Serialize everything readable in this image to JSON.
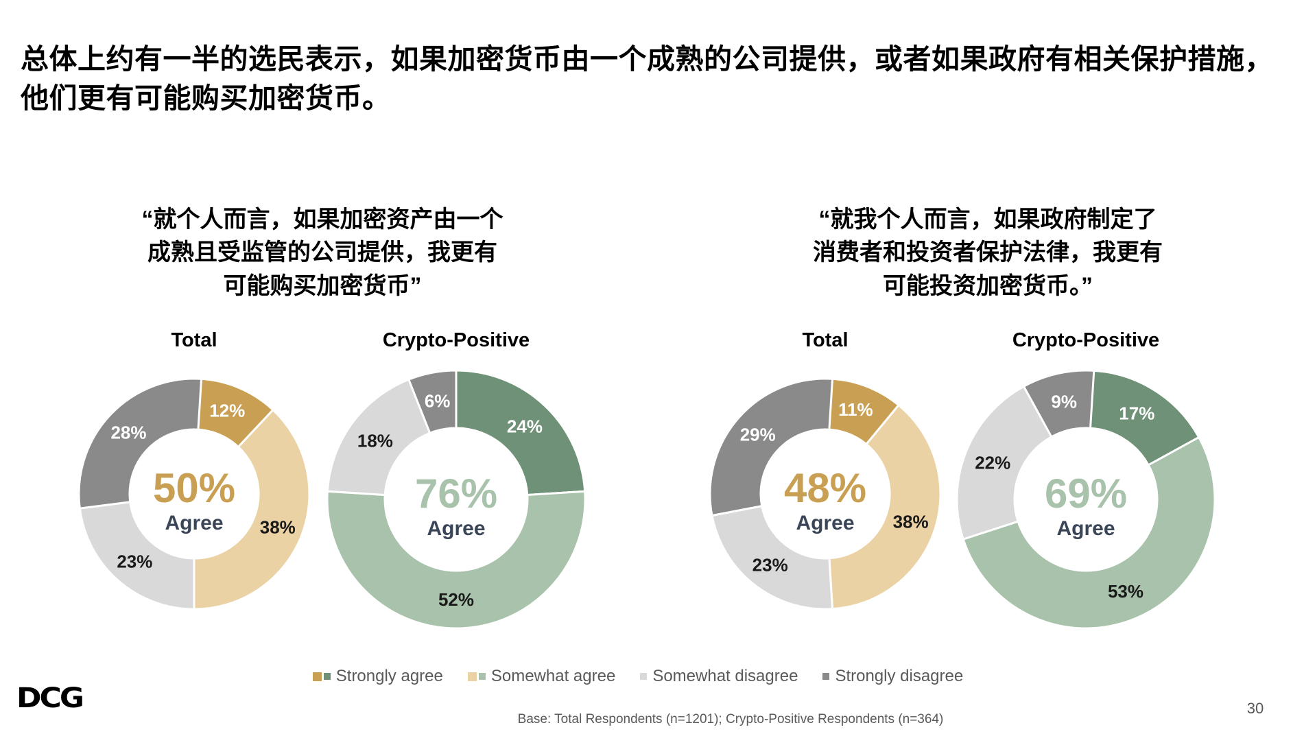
{
  "page": {
    "title": "总体上约有一半的选民表示，如果加密货币由一个成熟的公司提供，或者如果政府有相关保护措施，\n他们更有可能购买加密货币。",
    "logo_text": "DCG",
    "page_number": "30",
    "base_note": "Base: Total Respondents (n=1201); Crypto-Positive Respondents (n=364)"
  },
  "quotes": {
    "left": "“就个人而言，如果加密资产由一个\n成熟且受监管的公司提供，我更有\n可能购买加密货币”",
    "right": "“就我个人而言，如果政府制定了\n消费者和投资者保护法律，我更有\n可能投资加密货币。”"
  },
  "colors": {
    "strongly_agree_total": "#C9A053",
    "somewhat_agree_total": "#EAD2A4",
    "strongly_agree_crypto": "#6F9177",
    "somewhat_agree_crypto": "#A8C2AB",
    "somewhat_disagree": "#D9D9D9",
    "strongly_disagree": "#8A8A8A",
    "agree_text": "#3A4557",
    "footnote_text": "#595959"
  },
  "legend": [
    {
      "label": "Strongly agree",
      "colors": [
        "#C9A053",
        "#6F9177"
      ]
    },
    {
      "label": "Somewhat agree",
      "colors": [
        "#EAD2A4",
        "#A8C2AB"
      ]
    },
    {
      "label": "Somewhat disagree",
      "colors": [
        "#D9D9D9"
      ]
    },
    {
      "label": "Strongly disagree",
      "colors": [
        "#8A8A8A"
      ]
    }
  ],
  "chart_data": [
    {
      "type": "pie",
      "title": "Total",
      "question": "company",
      "center_value": "50%",
      "center_label": "Agree",
      "center_color": "#C9A053",
      "slices": [
        {
          "name": "Strongly agree",
          "value": 12,
          "label": "12%",
          "color": "#C9A053",
          "label_color": "#FFFFFF"
        },
        {
          "name": "Somewhat agree",
          "value": 38,
          "label": "38%",
          "color": "#EAD2A4",
          "label_color": "#1A1A1A"
        },
        {
          "name": "Somewhat disagree",
          "value": 23,
          "label": "23%",
          "color": "#D9D9D9",
          "label_color": "#1A1A1A"
        },
        {
          "name": "Strongly disagree",
          "value": 28,
          "label": "28%",
          "color": "#8A8A8A",
          "label_color": "#FFFFFF"
        }
      ]
    },
    {
      "type": "pie",
      "title": "Crypto-Positive",
      "question": "company",
      "center_value": "76%",
      "center_label": "Agree",
      "center_color": "#A8C2AB",
      "slices": [
        {
          "name": "Strongly agree",
          "value": 24,
          "label": "24%",
          "color": "#6F9177",
          "label_color": "#FFFFFF"
        },
        {
          "name": "Somewhat agree",
          "value": 52,
          "label": "52%",
          "color": "#A8C2AB",
          "label_color": "#1A1A1A"
        },
        {
          "name": "Somewhat disagree",
          "value": 18,
          "label": "18%",
          "color": "#D9D9D9",
          "label_color": "#1A1A1A"
        },
        {
          "name": "Strongly disagree",
          "value": 6,
          "label": "6%",
          "color": "#8A8A8A",
          "label_color": "#FFFFFF"
        }
      ]
    },
    {
      "type": "pie",
      "title": "Total",
      "question": "government",
      "center_value": "48%",
      "center_label": "Agree",
      "center_color": "#C9A053",
      "slices": [
        {
          "name": "Strongly agree",
          "value": 11,
          "label": "11%",
          "color": "#C9A053",
          "label_color": "#FFFFFF"
        },
        {
          "name": "Somewhat agree",
          "value": 38,
          "label": "38%",
          "color": "#EAD2A4",
          "label_color": "#1A1A1A"
        },
        {
          "name": "Somewhat disagree",
          "value": 23,
          "label": "23%",
          "color": "#D9D9D9",
          "label_color": "#1A1A1A"
        },
        {
          "name": "Strongly disagree",
          "value": 29,
          "label": "29%",
          "color": "#8A8A8A",
          "label_color": "#FFFFFF"
        }
      ]
    },
    {
      "type": "pie",
      "title": "Crypto-Positive",
      "question": "government",
      "center_value": "69%",
      "center_label": "Agree",
      "center_color": "#A8C2AB",
      "slices": [
        {
          "name": "Strongly agree",
          "value": 17,
          "label": "17%",
          "color": "#6F9177",
          "label_color": "#FFFFFF"
        },
        {
          "name": "Somewhat agree",
          "value": 53,
          "label": "53%",
          "color": "#A8C2AB",
          "label_color": "#1A1A1A"
        },
        {
          "name": "Somewhat disagree",
          "value": 22,
          "label": "22%",
          "color": "#D9D9D9",
          "label_color": "#1A1A1A"
        },
        {
          "name": "Strongly disagree",
          "value": 9,
          "label": "9%",
          "color": "#8A8A8A",
          "label_color": "#FFFFFF"
        }
      ]
    }
  ]
}
